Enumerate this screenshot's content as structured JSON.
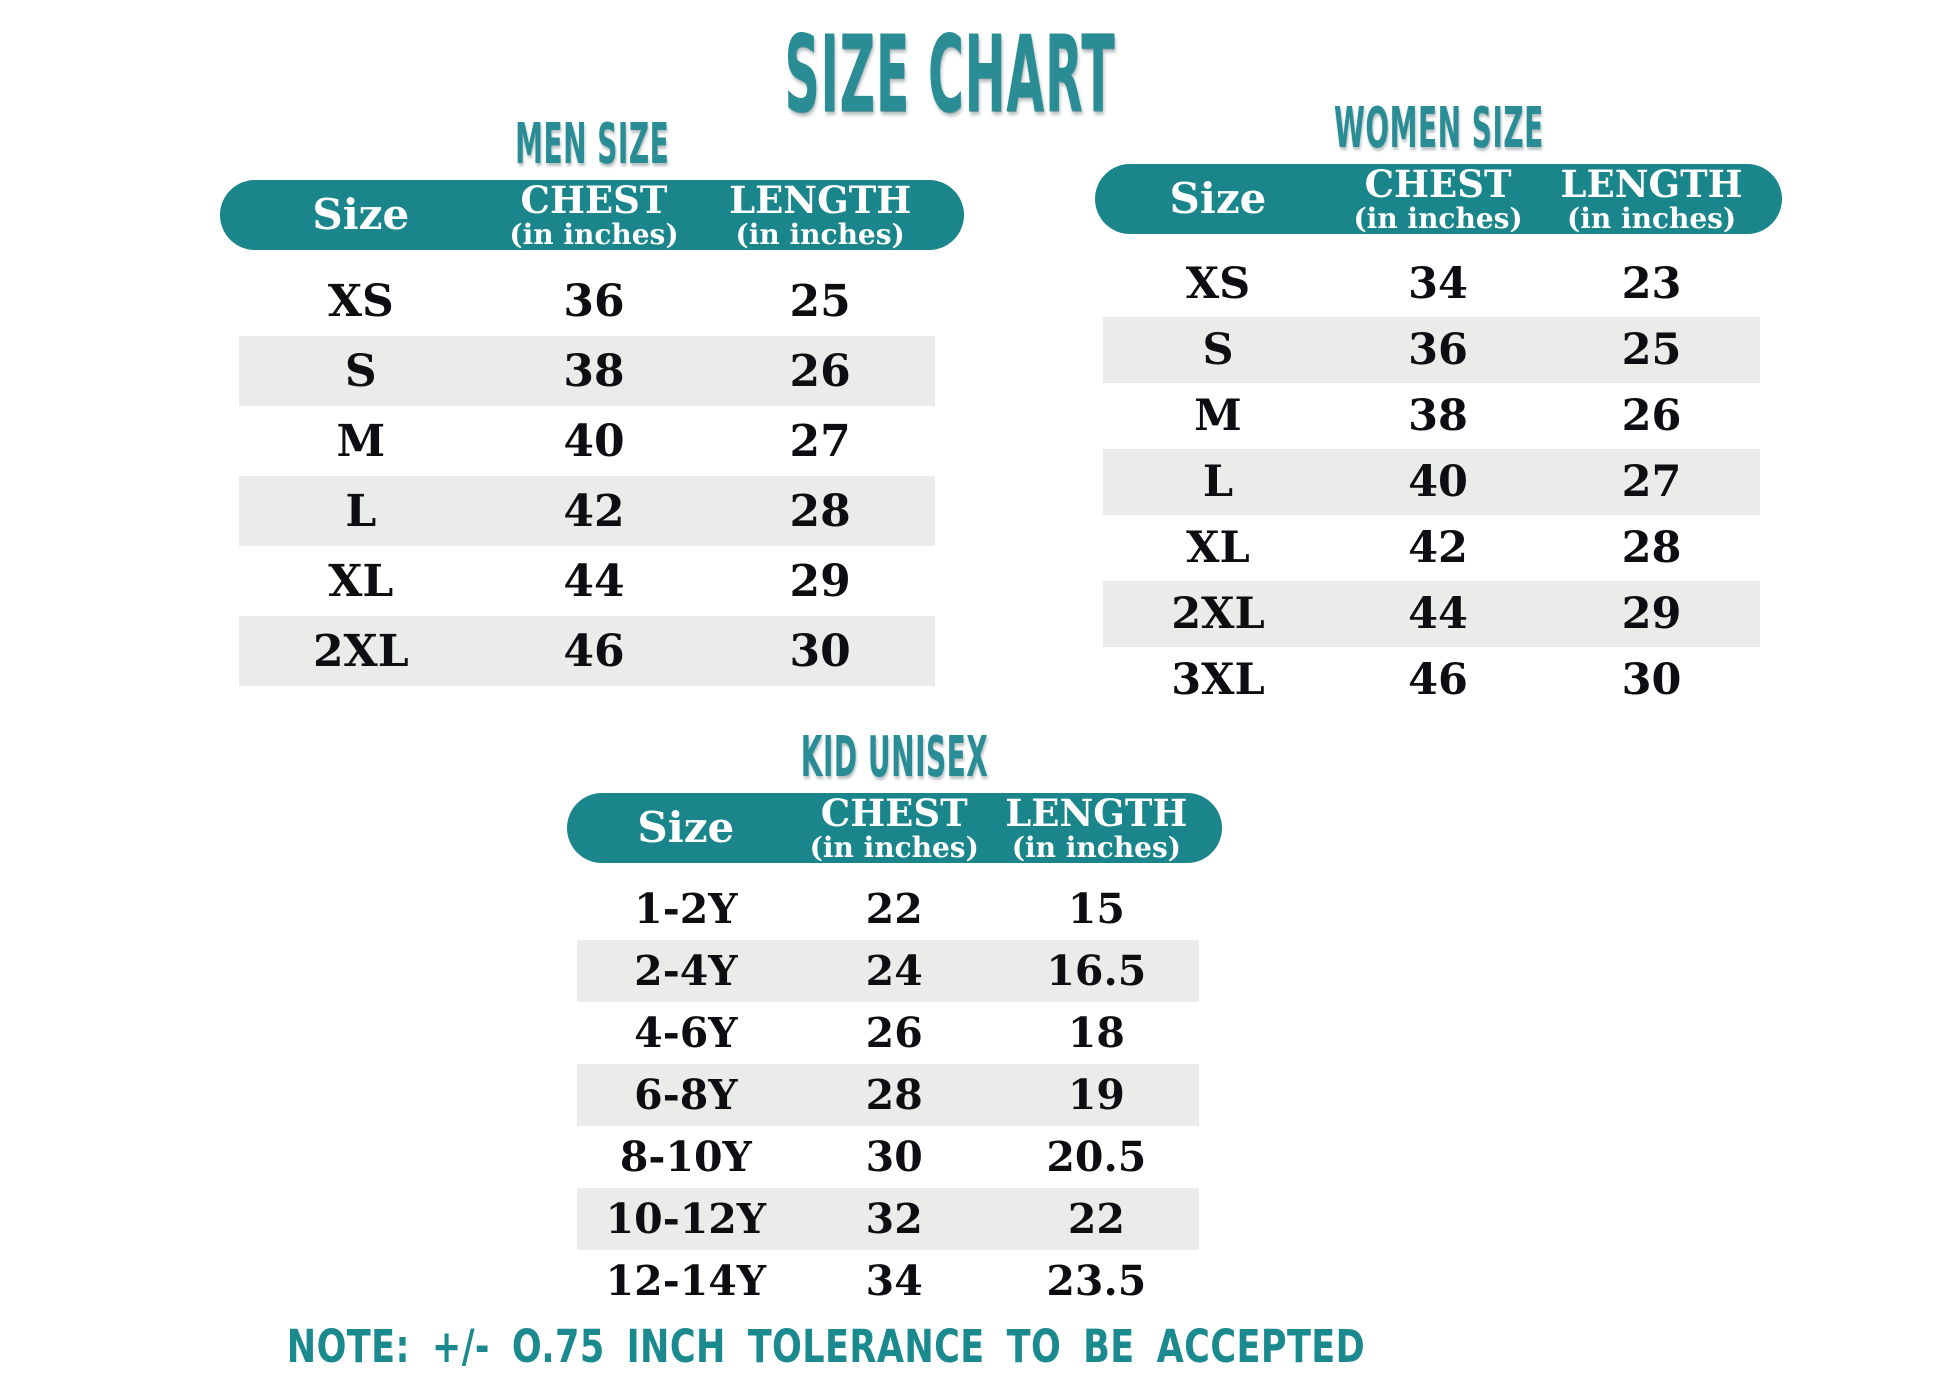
{
  "page": {
    "title": "SIZE CHART",
    "note": "NOTE: +/- O.75 INCH TOLERANCE TO BE ACCEPTED"
  },
  "colors": {
    "pill_teal": "#1a868c",
    "title_teal": "#2a8c94",
    "note_teal": "#1b8a8f",
    "row_alt_gray": "#e9ece9",
    "row_text": "#0e0e12",
    "header_text": "#ffffff",
    "background": "#ffffff"
  },
  "tables": {
    "men": {
      "title": "MEN SIZE",
      "headers": [
        {
          "label": "Size",
          "sub": ""
        },
        {
          "label": "CHEST",
          "sub": "(in inches)"
        },
        {
          "label": "LENGTH",
          "sub": "(in inches)"
        }
      ],
      "rows": [
        [
          "XS",
          "36",
          "25"
        ],
        [
          "S",
          "38",
          "26"
        ],
        [
          "M",
          "40",
          "27"
        ],
        [
          "L",
          "42",
          "28"
        ],
        [
          "XL",
          "44",
          "29"
        ],
        [
          "2XL",
          "46",
          "30"
        ]
      ]
    },
    "women": {
      "title": "WOMEN SIZE",
      "headers": [
        {
          "label": "Size",
          "sub": ""
        },
        {
          "label": "CHEST",
          "sub": "(in inches)"
        },
        {
          "label": "LENGTH",
          "sub": "(in inches)"
        }
      ],
      "rows": [
        [
          "XS",
          "34",
          "23"
        ],
        [
          "S",
          "36",
          "25"
        ],
        [
          "M",
          "38",
          "26"
        ],
        [
          "L",
          "40",
          "27"
        ],
        [
          "XL",
          "42",
          "28"
        ],
        [
          "2XL",
          "44",
          "29"
        ],
        [
          "3XL",
          "46",
          "30"
        ]
      ]
    },
    "kid": {
      "title": "KID UNISEX",
      "headers": [
        {
          "label": "Size",
          "sub": ""
        },
        {
          "label": "CHEST",
          "sub": "(in inches)"
        },
        {
          "label": "LENGTH",
          "sub": "(in inches)"
        }
      ],
      "rows": [
        [
          "1-2Y",
          "22",
          "15"
        ],
        [
          "2-4Y",
          "24",
          "16.5"
        ],
        [
          "4-6Y",
          "26",
          "18"
        ],
        [
          "6-8Y",
          "28",
          "19"
        ],
        [
          "8-10Y",
          "30",
          "20.5"
        ],
        [
          "10-12Y",
          "32",
          "22"
        ],
        [
          "12-14Y",
          "34",
          "23.5"
        ]
      ]
    }
  }
}
